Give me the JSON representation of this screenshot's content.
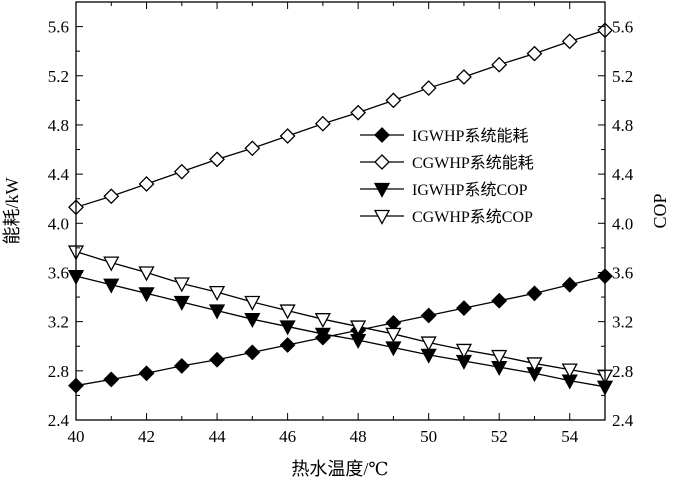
{
  "chart_data": {
    "type": "line",
    "xlabel": "热水温度/℃",
    "ylabel_left": "能耗/kW",
    "ylabel_right": "COP",
    "xlim": [
      40,
      55
    ],
    "ylim_left": [
      2.4,
      5.8
    ],
    "ylim_right": [
      2.4,
      5.8
    ],
    "x_ticks": [
      "40",
      "42",
      "44",
      "46",
      "48",
      "50",
      "52",
      "54"
    ],
    "y_ticks_left": [
      "2.4",
      "2.8",
      "3.2",
      "3.6",
      "4.0",
      "4.4",
      "4.8",
      "5.2",
      "5.6"
    ],
    "y_ticks_right": [
      "2.4",
      "2.8",
      "3.2",
      "3.6",
      "4.0",
      "4.4",
      "4.8",
      "5.2",
      "5.6"
    ],
    "legend_position": "center-right",
    "grid": false,
    "x": [
      40,
      41,
      42,
      43,
      44,
      45,
      46,
      47,
      48,
      49,
      50,
      51,
      52,
      53,
      54,
      55
    ],
    "series": [
      {
        "name": "IGWHP系统能耗",
        "axis": "left",
        "marker": "diamond-filled",
        "values": [
          2.68,
          2.73,
          2.78,
          2.84,
          2.89,
          2.95,
          3.01,
          3.07,
          3.13,
          3.19,
          3.25,
          3.31,
          3.37,
          3.43,
          3.5,
          3.57
        ]
      },
      {
        "name": "CGWHP系统能耗",
        "axis": "left",
        "marker": "diamond-open",
        "values": [
          4.13,
          4.22,
          4.32,
          4.42,
          4.52,
          4.61,
          4.71,
          4.81,
          4.9,
          5.0,
          5.1,
          5.19,
          5.29,
          5.38,
          5.48,
          5.57
        ]
      },
      {
        "name": "IGWHP系统COP",
        "axis": "right",
        "marker": "triangle-down-filled",
        "values": [
          3.57,
          3.5,
          3.43,
          3.36,
          3.29,
          3.22,
          3.16,
          3.1,
          3.05,
          2.99,
          2.93,
          2.88,
          2.83,
          2.78,
          2.72,
          2.67
        ]
      },
      {
        "name": "CGWHP系统COP",
        "axis": "right",
        "marker": "triangle-down-open",
        "values": [
          3.77,
          3.68,
          3.6,
          3.51,
          3.44,
          3.36,
          3.29,
          3.22,
          3.16,
          3.1,
          3.03,
          2.97,
          2.92,
          2.86,
          2.81,
          2.76
        ]
      }
    ]
  }
}
